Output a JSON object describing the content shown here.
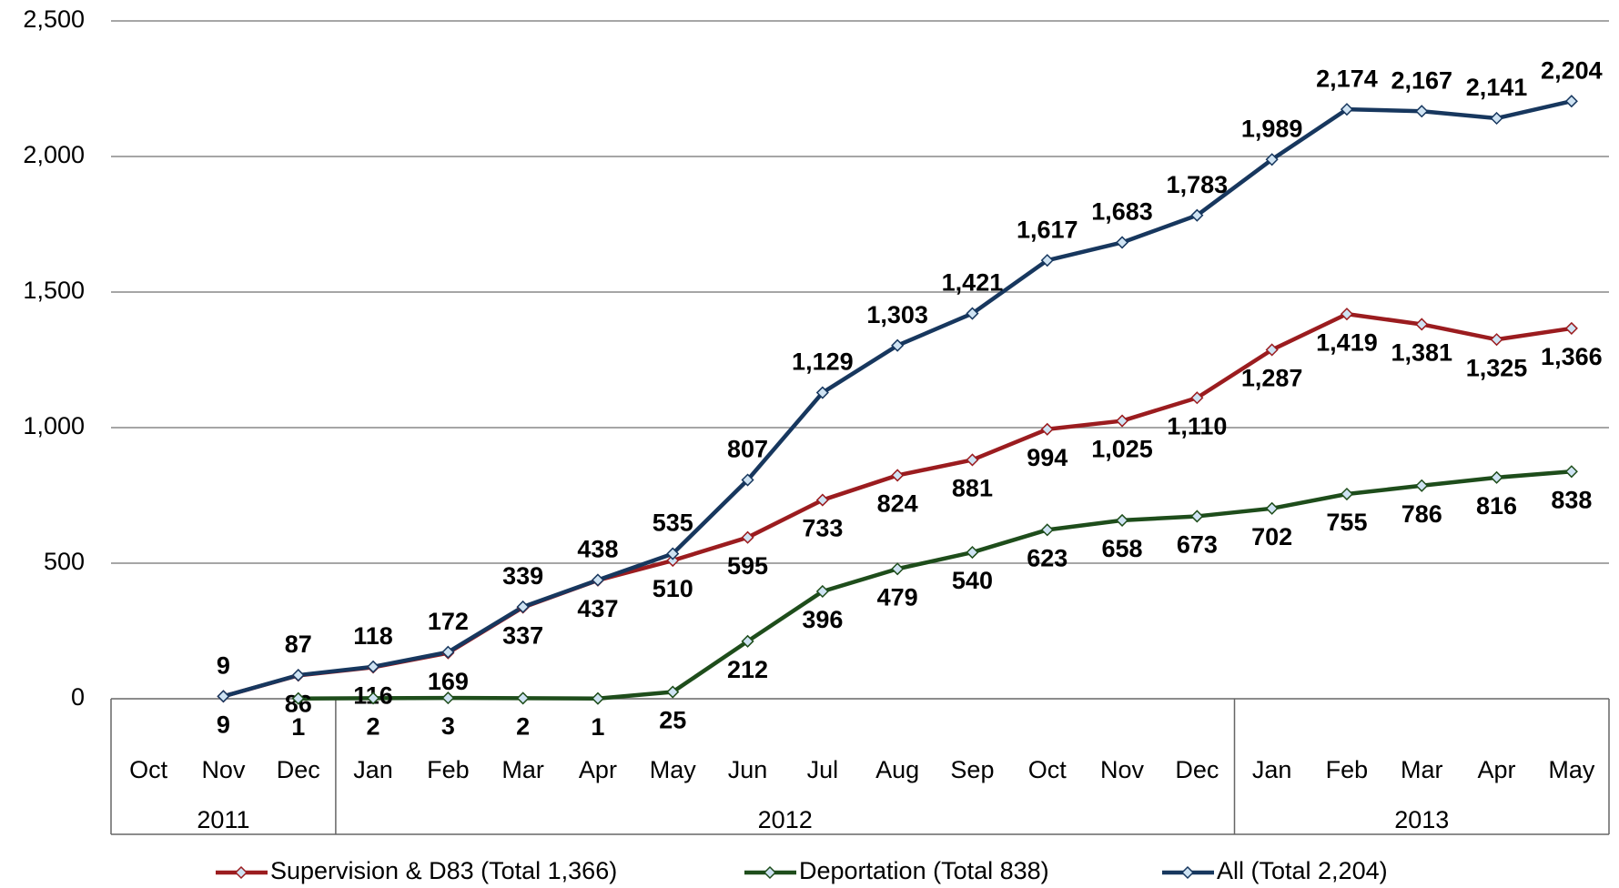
{
  "chart_data": {
    "type": "line",
    "categories": [
      "Oct",
      "Nov",
      "Dec",
      "Jan",
      "Feb",
      "Mar",
      "Apr",
      "May",
      "Jun",
      "Jul",
      "Aug",
      "Sep",
      "Oct",
      "Nov",
      "Dec",
      "Jan",
      "Feb",
      "Mar",
      "Apr",
      "May"
    ],
    "groups": [
      {
        "label": "2011",
        "span": 3
      },
      {
        "label": "2012",
        "span": 12
      },
      {
        "label": "2013",
        "span": 5
      }
    ],
    "series": [
      {
        "name": "Supervision & D83 (Total 1,366)",
        "color": "#9b1c1f",
        "label_position": "below",
        "values": [
          null,
          9,
          86,
          116,
          169,
          337,
          437,
          510,
          595,
          733,
          824,
          881,
          994,
          1025,
          1110,
          1287,
          1419,
          1381,
          1325,
          1366
        ],
        "value_labels": [
          null,
          "9",
          "86",
          "116",
          "169",
          "337",
          "437",
          "510",
          "595",
          "733",
          "824",
          "881",
          "994",
          "1,025",
          "1,110",
          "1,287",
          "1,419",
          "1,381",
          "1,325",
          "1,366"
        ]
      },
      {
        "name": "Deportation (Total 838)",
        "color": "#1e4d1b",
        "label_position": "below",
        "values": [
          null,
          null,
          1,
          2,
          3,
          2,
          1,
          25,
          212,
          396,
          479,
          540,
          623,
          658,
          673,
          702,
          755,
          786,
          816,
          838
        ],
        "value_labels": [
          null,
          null,
          "1",
          "2",
          "3",
          "2",
          "1",
          "25",
          "212",
          "396",
          "479",
          "540",
          "623",
          "658",
          "673",
          "702",
          "755",
          "786",
          "816",
          "838"
        ]
      },
      {
        "name": "All (Total 2,204)",
        "color": "#17375e",
        "label_position": "above",
        "values": [
          null,
          9,
          87,
          118,
          172,
          339,
          438,
          535,
          807,
          1129,
          1303,
          1421,
          1617,
          1683,
          1783,
          1989,
          2174,
          2167,
          2141,
          2204
        ],
        "value_labels": [
          null,
          "9",
          "87",
          "118",
          "172",
          "339",
          "438",
          "535",
          "807",
          "1,129",
          "1,303",
          "1,421",
          "1,617",
          "1,683",
          "1,783",
          "1,989",
          "2,174",
          "2,167",
          "2,141",
          "2,204"
        ]
      }
    ],
    "ylim": [
      0,
      2500
    ],
    "yticks": [
      0,
      500,
      {
        "value": 1000,
        "label": "1,000"
      },
      {
        "value": 1500,
        "label": "1,500"
      },
      {
        "value": 2000,
        "label": "2,000"
      },
      {
        "value": 2500,
        "label": "2,500"
      }
    ],
    "grid": true,
    "legend": "bottom"
  }
}
